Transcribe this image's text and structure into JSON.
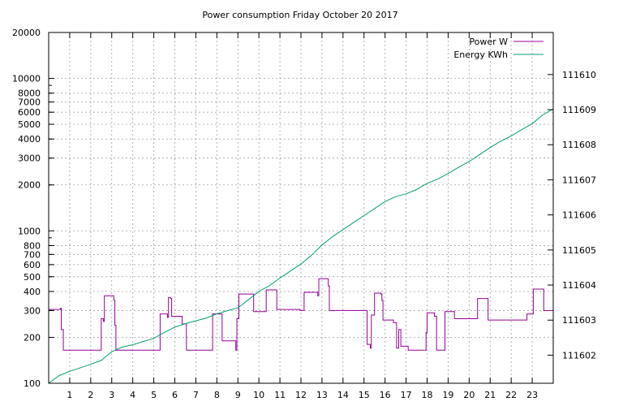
{
  "chart_data": {
    "type": "line",
    "title": "Power consumption Friday October 20 2017",
    "x": {
      "range": [
        0,
        24
      ],
      "ticks": [
        1,
        2,
        3,
        4,
        5,
        6,
        7,
        8,
        9,
        10,
        11,
        12,
        13,
        14,
        15,
        16,
        17,
        18,
        19,
        20,
        21,
        22,
        23
      ]
    },
    "y": {
      "scale": "log",
      "range": [
        100,
        20000
      ],
      "ticks": [
        100,
        200,
        300,
        400,
        500,
        600,
        700,
        800,
        1000,
        2000,
        3000,
        4000,
        5000,
        6000,
        7000,
        8000,
        10000,
        20000
      ]
    },
    "y2": {
      "range": [
        111601.2,
        111611.2
      ],
      "ticks": [
        111602,
        111603,
        111604,
        111605,
        111606,
        111607,
        111608,
        111609,
        111610
      ]
    },
    "grid": true,
    "legend_position": "top-right",
    "series": [
      {
        "name": "Power W",
        "axis": "y",
        "color": "#940094",
        "step": true,
        "points": [
          [
            0.0,
            305
          ],
          [
            0.55,
            310
          ],
          [
            0.6,
            225
          ],
          [
            0.7,
            165
          ],
          [
            2.45,
            165
          ],
          [
            2.5,
            265
          ],
          [
            2.6,
            255
          ],
          [
            2.65,
            375
          ],
          [
            3.1,
            350
          ],
          [
            3.15,
            240
          ],
          [
            3.2,
            165
          ],
          [
            5.25,
            165
          ],
          [
            5.3,
            285
          ],
          [
            5.65,
            270
          ],
          [
            5.7,
            365
          ],
          [
            5.8,
            360
          ],
          [
            5.85,
            275
          ],
          [
            6.3,
            275
          ],
          [
            6.35,
            245
          ],
          [
            6.5,
            245
          ],
          [
            6.55,
            165
          ],
          [
            7.75,
            165
          ],
          [
            7.8,
            285
          ],
          [
            8.2,
            285
          ],
          [
            8.25,
            190
          ],
          [
            8.85,
            190
          ],
          [
            8.9,
            165
          ],
          [
            8.95,
            265
          ],
          [
            9.0,
            265
          ],
          [
            9.05,
            385
          ],
          [
            9.7,
            385
          ],
          [
            9.75,
            295
          ],
          [
            10.3,
            295
          ],
          [
            10.35,
            410
          ],
          [
            10.8,
            410
          ],
          [
            10.85,
            305
          ],
          [
            11.9,
            305
          ],
          [
            11.95,
            300
          ],
          [
            12.1,
            300
          ],
          [
            12.15,
            395
          ],
          [
            12.75,
            395
          ],
          [
            12.8,
            375
          ],
          [
            12.85,
            485
          ],
          [
            13.25,
            485
          ],
          [
            13.3,
            435
          ],
          [
            13.35,
            300
          ],
          [
            15.1,
            300
          ],
          [
            15.15,
            180
          ],
          [
            15.3,
            170
          ],
          [
            15.35,
            280
          ],
          [
            15.45,
            280
          ],
          [
            15.5,
            390
          ],
          [
            15.8,
            385
          ],
          [
            15.85,
            350
          ],
          [
            15.9,
            260
          ],
          [
            16.35,
            260
          ],
          [
            16.4,
            250
          ],
          [
            16.5,
            250
          ],
          [
            16.55,
            170
          ],
          [
            16.65,
            225
          ],
          [
            16.75,
            175
          ],
          [
            17.05,
            175
          ],
          [
            17.1,
            165
          ],
          [
            17.9,
            165
          ],
          [
            17.95,
            215
          ],
          [
            18.0,
            290
          ],
          [
            18.3,
            290
          ],
          [
            18.35,
            275
          ],
          [
            18.45,
            165
          ],
          [
            18.8,
            165
          ],
          [
            18.85,
            295
          ],
          [
            19.25,
            295
          ],
          [
            19.3,
            265
          ],
          [
            20.35,
            265
          ],
          [
            20.4,
            360
          ],
          [
            20.85,
            360
          ],
          [
            20.9,
            260
          ],
          [
            22.7,
            260
          ],
          [
            22.75,
            285
          ],
          [
            23.0,
            285
          ],
          [
            23.05,
            415
          ],
          [
            23.5,
            415
          ],
          [
            23.55,
            300
          ],
          [
            24.0,
            300
          ]
        ]
      },
      {
        "name": "Energy KWh",
        "axis": "y2",
        "color": "#009e73",
        "step": false,
        "points": [
          [
            0.0,
            111601.2
          ],
          [
            0.5,
            111601.42
          ],
          [
            1.0,
            111601.54
          ],
          [
            2.0,
            111601.74
          ],
          [
            2.5,
            111601.85
          ],
          [
            3.0,
            111602.1
          ],
          [
            3.5,
            111602.23
          ],
          [
            4.0,
            111602.3
          ],
          [
            5.0,
            111602.48
          ],
          [
            5.5,
            111602.65
          ],
          [
            6.0,
            111602.8
          ],
          [
            6.5,
            111602.9
          ],
          [
            7.0,
            111602.98
          ],
          [
            7.5,
            111603.06
          ],
          [
            8.0,
            111603.18
          ],
          [
            8.5,
            111603.27
          ],
          [
            9.0,
            111603.35
          ],
          [
            9.5,
            111603.58
          ],
          [
            10.0,
            111603.82
          ],
          [
            10.5,
            111603.98
          ],
          [
            11.0,
            111604.2
          ],
          [
            11.5,
            111604.4
          ],
          [
            12.0,
            111604.6
          ],
          [
            12.5,
            111604.85
          ],
          [
            13.0,
            111605.14
          ],
          [
            13.5,
            111605.38
          ],
          [
            14.0,
            111605.58
          ],
          [
            14.5,
            111605.78
          ],
          [
            15.0,
            111605.98
          ],
          [
            15.5,
            111606.18
          ],
          [
            16.0,
            111606.38
          ],
          [
            16.5,
            111606.52
          ],
          [
            17.0,
            111606.6
          ],
          [
            17.5,
            111606.72
          ],
          [
            18.0,
            111606.9
          ],
          [
            18.5,
            111607.02
          ],
          [
            19.0,
            111607.18
          ],
          [
            19.5,
            111607.36
          ],
          [
            20.0,
            111607.52
          ],
          [
            20.5,
            111607.72
          ],
          [
            21.0,
            111607.92
          ],
          [
            21.5,
            111608.1
          ],
          [
            22.0,
            111608.25
          ],
          [
            22.5,
            111608.43
          ],
          [
            23.0,
            111608.6
          ],
          [
            23.5,
            111608.85
          ],
          [
            24.0,
            111609.02
          ]
        ]
      }
    ]
  }
}
